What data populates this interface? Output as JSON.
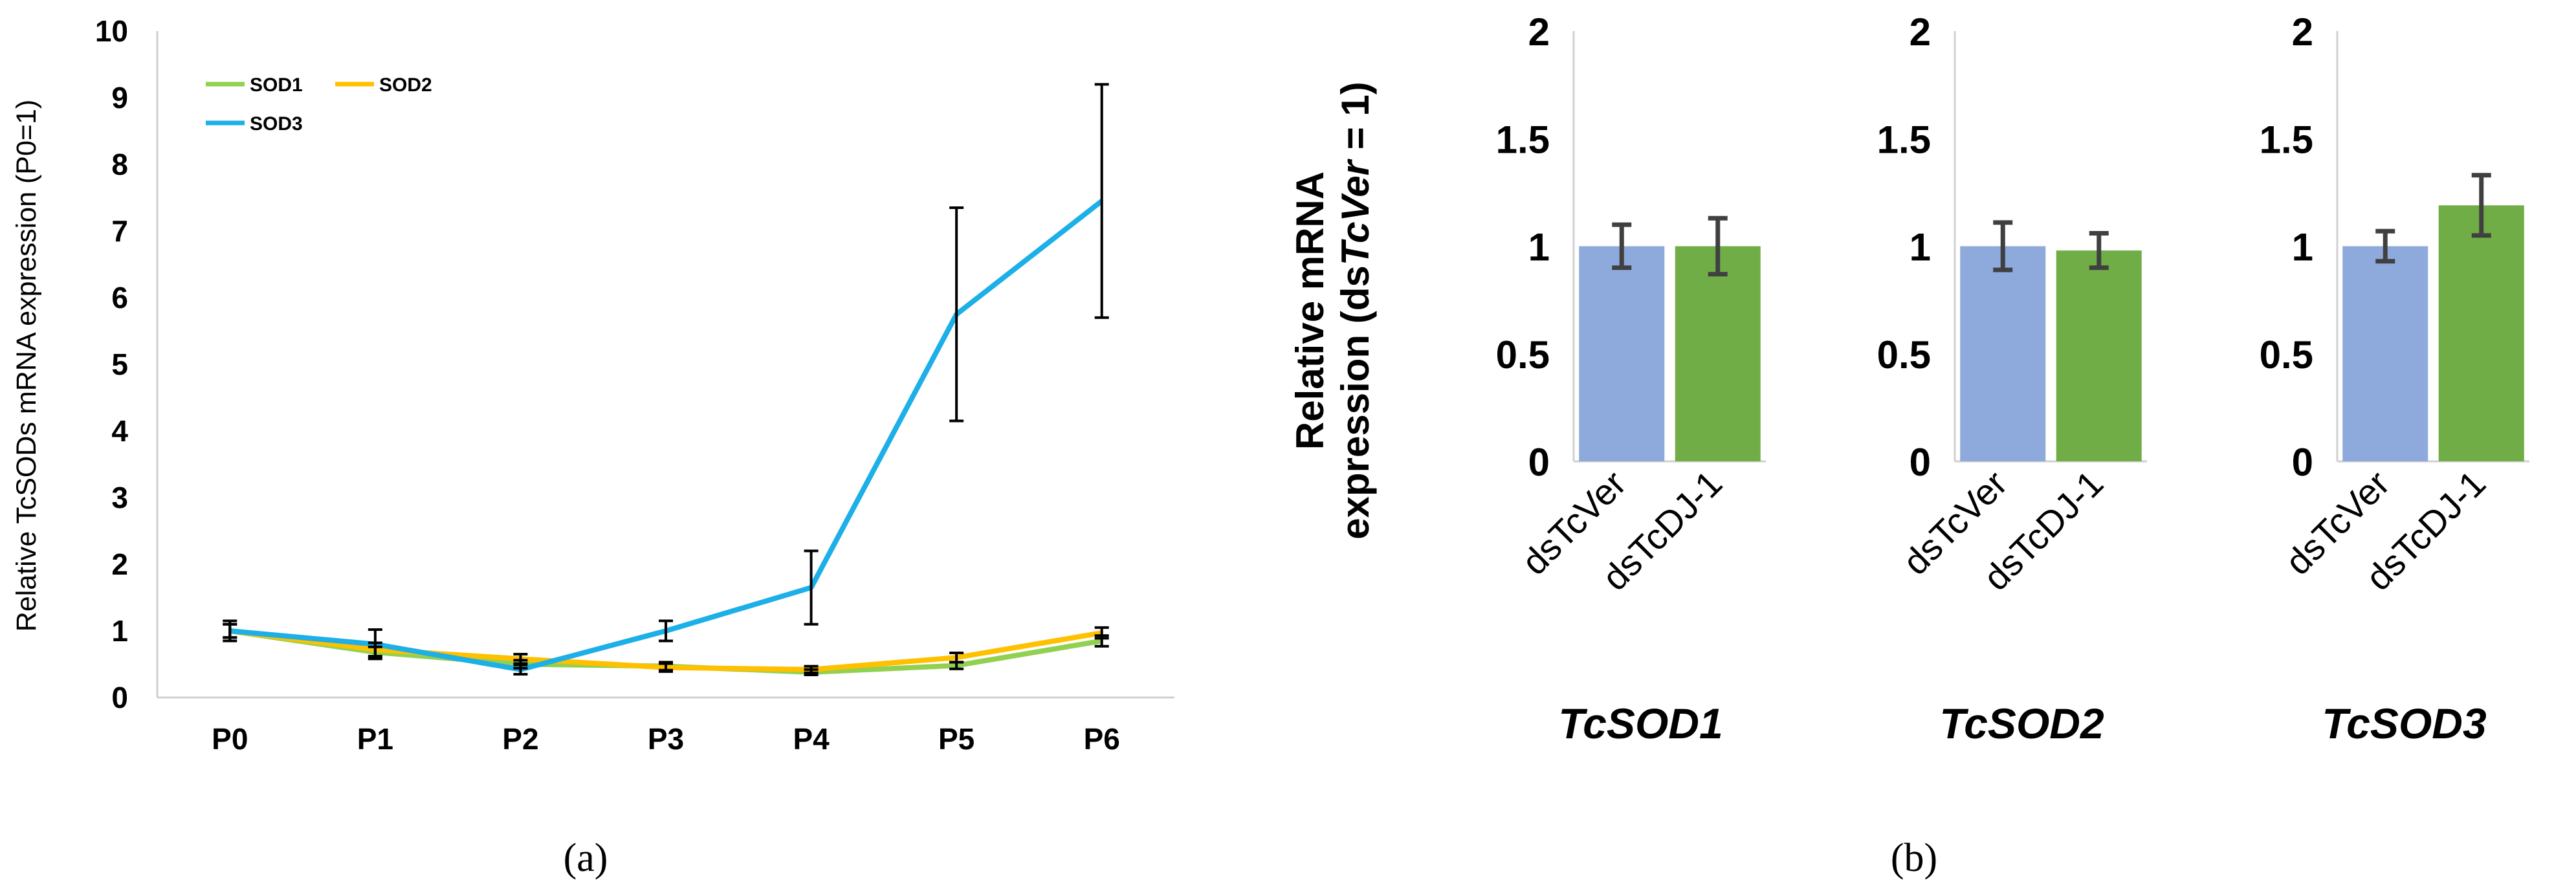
{
  "chart_data": [
    {
      "type": "line",
      "panel_label": "(a)",
      "ylabel": "Relative TcSODs mRNA expression (P0=1)",
      "xlabel": "",
      "categories": [
        "P0",
        "P1",
        "P2",
        "P3",
        "P4",
        "P5",
        "P6"
      ],
      "ylim": [
        0,
        10
      ],
      "yticks": [
        "0",
        "1",
        "2",
        "3",
        "4",
        "5",
        "6",
        "7",
        "8",
        "9",
        "10"
      ],
      "grid": false,
      "legend_position": "top-left",
      "series": [
        {
          "name": "SOD1",
          "color": "#92D050",
          "values": [
            1.0,
            0.68,
            0.5,
            0.47,
            0.38,
            0.48,
            0.85
          ],
          "errors": [
            0.1,
            0.08,
            0.06,
            0.06,
            0.04,
            0.05,
            0.08
          ]
        },
        {
          "name": "SOD2",
          "color": "#FFC000",
          "values": [
            1.0,
            0.72,
            0.58,
            0.45,
            0.42,
            0.6,
            0.97
          ],
          "errors": [
            0.1,
            0.1,
            0.07,
            0.06,
            0.05,
            0.07,
            0.08
          ]
        },
        {
          "name": "SOD3",
          "color": "#1CAFE8",
          "values": [
            1.0,
            0.8,
            0.42,
            1.0,
            1.65,
            5.75,
            7.45
          ],
          "errors": [
            0.15,
            0.22,
            0.07,
            0.15,
            0.55,
            1.6,
            1.75
          ]
        }
      ]
    },
    {
      "type": "bar",
      "panel_label": "(b)",
      "ylabel_lines": [
        "Relative mRNA",
        "expression (ds",
        "TcVer",
        " = 1)"
      ],
      "ylim": [
        0,
        2
      ],
      "yticks": [
        "0",
        "0.5",
        "1",
        "1.5",
        "2"
      ],
      "categories": [
        "dsTcVer",
        "dsTcDJ-1"
      ],
      "bar_colors": [
        "#8EA9DB",
        "#70AD47"
      ],
      "errorbar_color": "#404040",
      "panels": [
        {
          "title": "TcSOD1",
          "values": [
            1.0,
            1.0
          ],
          "errors": [
            0.1,
            0.13
          ]
        },
        {
          "title": "TcSOD2",
          "values": [
            1.0,
            0.98
          ],
          "errors": [
            0.11,
            0.08
          ]
        },
        {
          "title": "TcSOD3",
          "values": [
            1.0,
            1.19
          ],
          "errors": [
            0.07,
            0.14
          ]
        }
      ]
    }
  ]
}
